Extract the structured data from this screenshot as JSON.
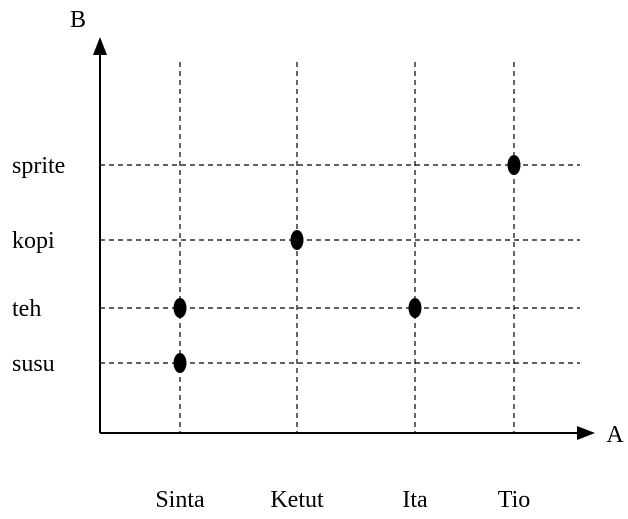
{
  "chart_data": {
    "type": "scatter",
    "xlabel": "A",
    "ylabel": "B",
    "categories": [
      "Sinta",
      "Ketut",
      "Ita",
      "Tio"
    ],
    "y_categories": [
      "susu",
      "teh",
      "kopi",
      "sprite"
    ],
    "points": [
      {
        "x": "Sinta",
        "y": "susu"
      },
      {
        "x": "Sinta",
        "y": "teh"
      },
      {
        "x": "Ketut",
        "y": "kopi"
      },
      {
        "x": "Ita",
        "y": "teh"
      },
      {
        "x": "Tio",
        "y": "sprite"
      }
    ],
    "grid": true,
    "grid_style": "dashed",
    "colors": {
      "axis": "#000000",
      "grid": "#000000",
      "point": "#000000"
    }
  }
}
